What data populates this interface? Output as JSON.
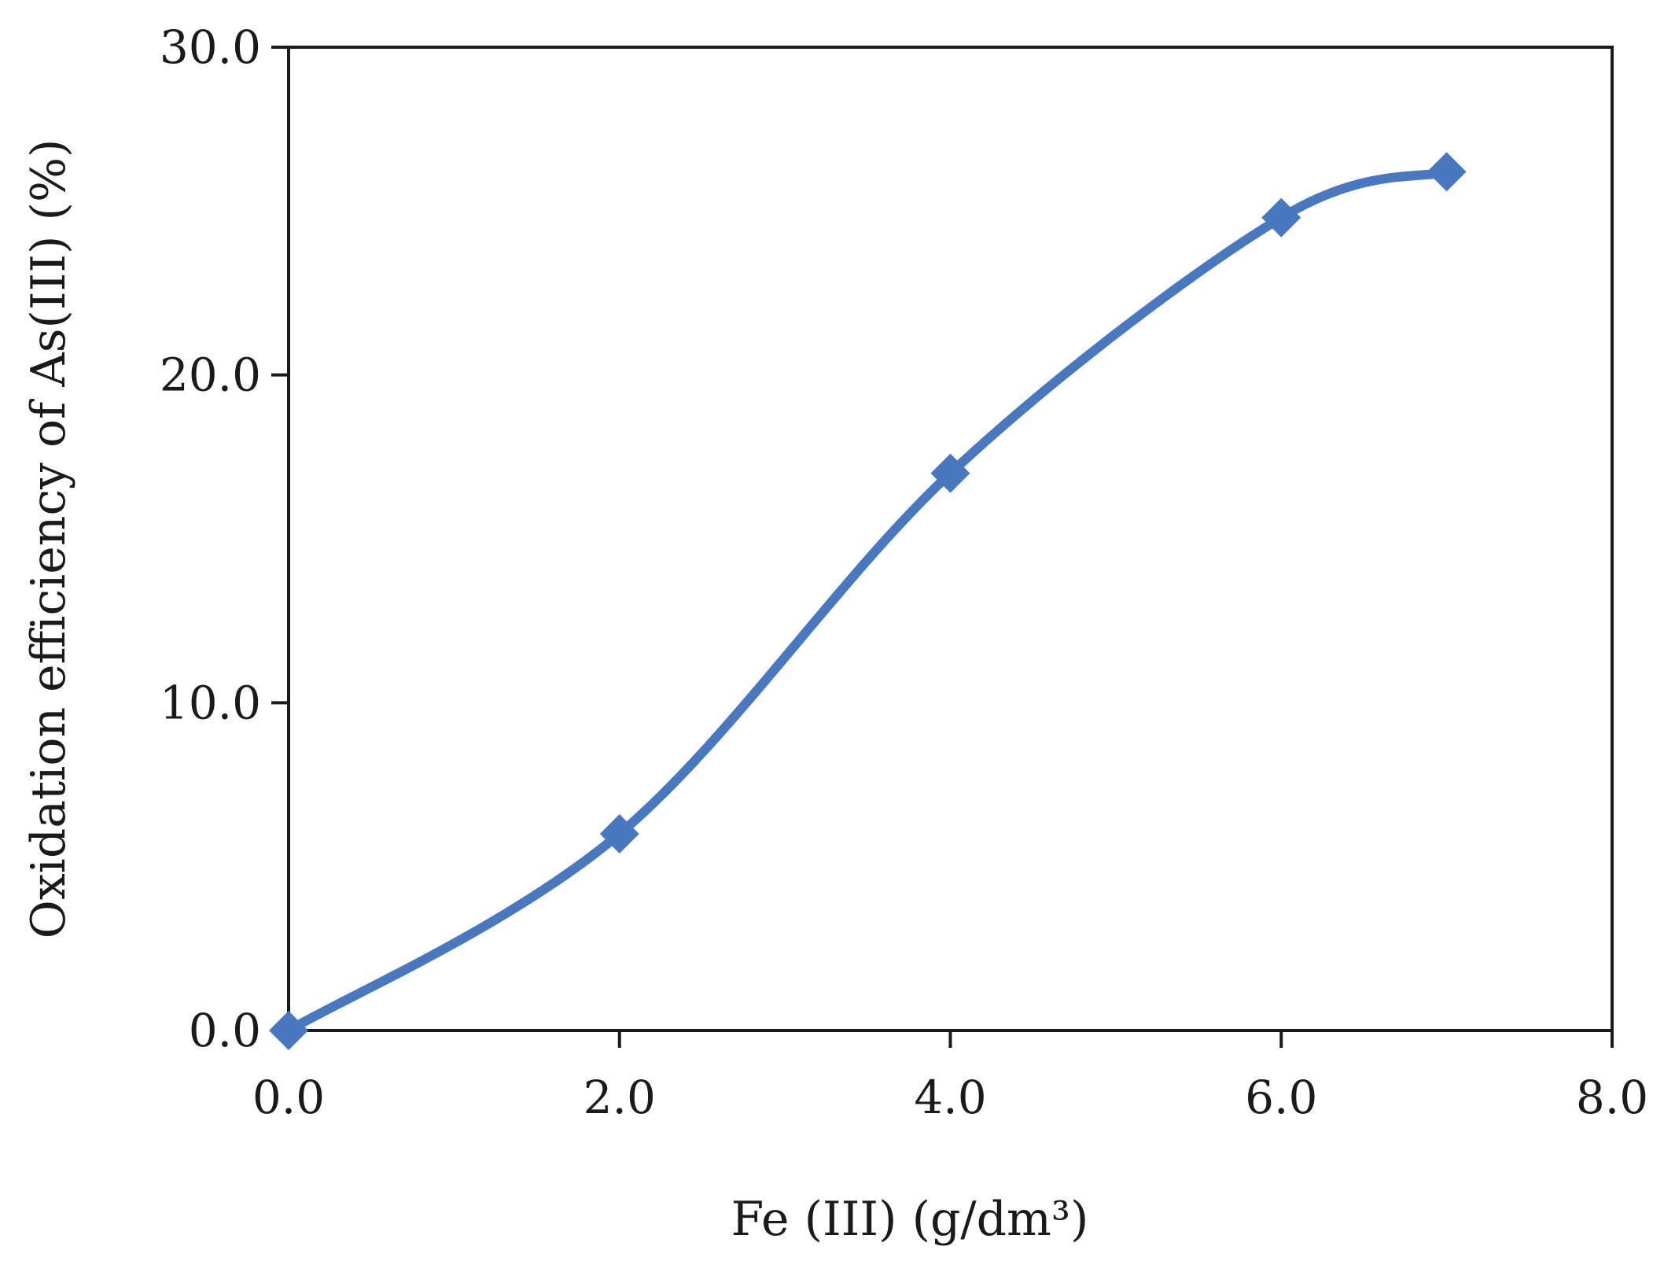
{
  "chart_data": {
    "type": "line",
    "title": "",
    "xlabel": "Fe (III) (g/dm³)",
    "ylabel": "Oxidation efficiency of As(III) (%)",
    "xlim": [
      0,
      8
    ],
    "ylim": [
      0,
      30
    ],
    "x_ticks": [
      "0.0",
      "2.0",
      "4.0",
      "6.0",
      "8.0"
    ],
    "y_ticks": [
      "0.0",
      "10.0",
      "20.0",
      "30.0"
    ],
    "grid": false,
    "legend": "none",
    "smooth": true,
    "series": [
      {
        "color": "#4a78bf",
        "marker": "diamond",
        "x": [
          0.0,
          2.0,
          4.0,
          6.0,
          7.0
        ],
        "y": [
          0.0,
          6.0,
          17.0,
          24.8,
          26.2
        ]
      }
    ]
  }
}
